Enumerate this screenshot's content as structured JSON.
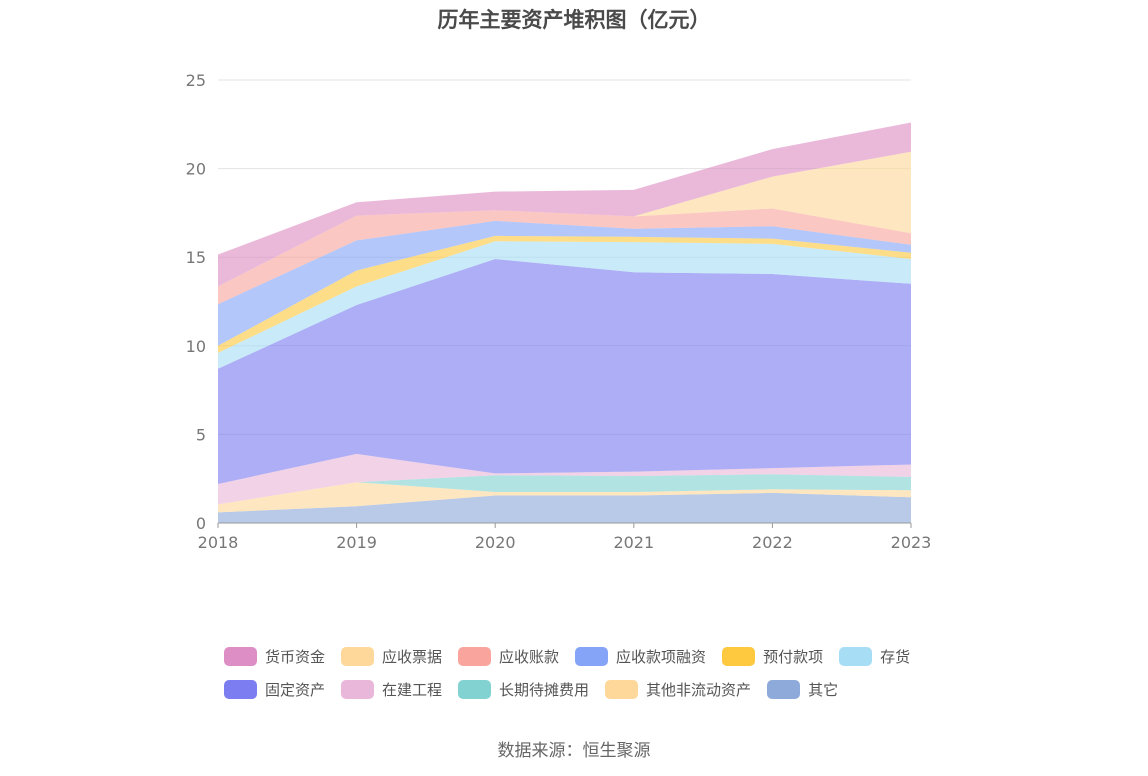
{
  "chart_data": {
    "type": "area",
    "stacked": true,
    "title": "历年主要资产堆积图（亿元）",
    "x": [
      "2018",
      "2019",
      "2020",
      "2021",
      "2022",
      "2023"
    ],
    "ylim": [
      0,
      25
    ],
    "yticks": [
      0,
      5,
      10,
      15,
      20,
      25
    ],
    "grid": true,
    "legend_position": "bottom",
    "series": [
      {
        "name": "其它",
        "color": "#8eaadb",
        "values": [
          0.6,
          0.95,
          1.55,
          1.55,
          1.7,
          1.45
        ]
      },
      {
        "name": "其他非流动资产",
        "color": "#fdd89a",
        "values": [
          0.45,
          1.35,
          0.2,
          0.2,
          0.2,
          0.4
        ]
      },
      {
        "name": "长期待摊费用",
        "color": "#82d2d2",
        "values": [
          0,
          0,
          0.95,
          0.9,
          0.85,
          0.75
        ]
      },
      {
        "name": "在建工程",
        "color": "#e8b7d9",
        "values": [
          1.15,
          1.6,
          0.1,
          0.25,
          0.35,
          0.7
        ]
      },
      {
        "name": "固定资产",
        "color": "#7b7df0",
        "values": [
          6.5,
          8.4,
          12.1,
          11.25,
          10.95,
          10.2
        ]
      },
      {
        "name": "存货",
        "color": "#a8def5",
        "values": [
          0.9,
          1.05,
          1.0,
          1.7,
          1.7,
          1.4
        ]
      },
      {
        "name": "预付款项",
        "color": "#fec83f",
        "values": [
          0.4,
          0.9,
          0.3,
          0.3,
          0.3,
          0.35
        ]
      },
      {
        "name": "应收款项融资",
        "color": "#85a4f7",
        "values": [
          2.35,
          1.7,
          0.85,
          0.45,
          0.7,
          0.45
        ]
      },
      {
        "name": "应收账款",
        "color": "#f9a59d",
        "values": [
          1.0,
          1.4,
          0.6,
          0.7,
          1.0,
          0.65
        ]
      },
      {
        "name": "应收票据",
        "color": "#fdd89a",
        "values": [
          0,
          0,
          0,
          0,
          1.8,
          4.6
        ]
      },
      {
        "name": "货币资金",
        "color": "#dd8ec4",
        "values": [
          1.8,
          0.75,
          1.05,
          1.5,
          1.55,
          1.65
        ]
      }
    ]
  },
  "legend_rows": [
    [
      "货币资金",
      "应收票据",
      "应收账款",
      "应收款项融资",
      "预付款项",
      "存货"
    ],
    [
      "固定资产",
      "在建工程",
      "长期待摊费用",
      "其他非流动资产",
      "其它"
    ]
  ],
  "source": "数据来源：恒生聚源"
}
